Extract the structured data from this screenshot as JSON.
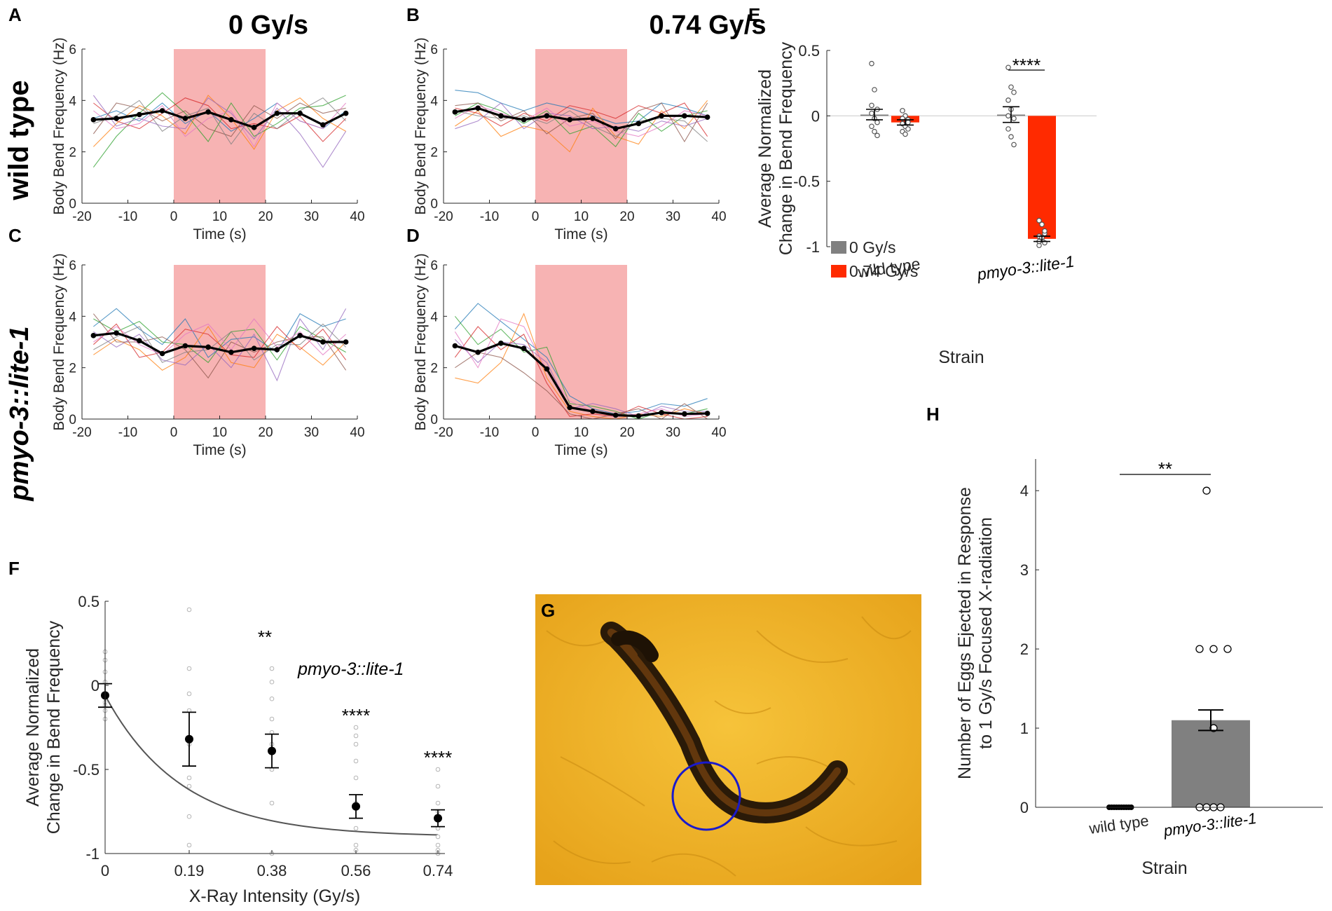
{
  "colors": {
    "shade": "#f7b3b3",
    "mean_line": "#000000",
    "bar_control": "#808080",
    "bar_treated": "#ff2a00",
    "axis": "#262626",
    "photo_bg": "#f0b52a",
    "circle": "#1a1acc",
    "trace_palette": [
      "#1f77b4",
      "#ff7f0e",
      "#2ca02c",
      "#d62728",
      "#9467bd",
      "#8c564b",
      "#e377c2",
      "#7f7f7f",
      "#bcbd22",
      "#17becf"
    ]
  },
  "columns": [
    "0 Gy/s",
    "0.74 Gy/s"
  ],
  "rows": [
    {
      "text": "wild type",
      "italic": false
    },
    {
      "text": "pmyo-3::lite-1",
      "italic": true
    }
  ],
  "chart_data": [
    {
      "id": "A",
      "label": "A",
      "type": "line",
      "title": "0 Gy/s",
      "row": "wild type",
      "xlabel": "Time (s)",
      "ylabel": "Body Bend Frequency (Hz)",
      "xlim": [
        -20,
        40
      ],
      "ylim": [
        0,
        6
      ],
      "xticks": [
        "-20",
        "-10",
        "0",
        "10",
        "20",
        "30",
        "40"
      ],
      "yticks": [
        "0",
        "2",
        "4",
        "6"
      ],
      "stimulus_window": [
        0,
        20
      ],
      "x": [
        -17.5,
        -12.5,
        -7.5,
        -2.5,
        2.5,
        7.5,
        12.5,
        17.5,
        22.5,
        27.5,
        32.5,
        37.5
      ],
      "mean": [
        3.25,
        3.3,
        3.45,
        3.6,
        3.3,
        3.55,
        3.25,
        2.95,
        3.5,
        3.5,
        3.05,
        3.5
      ],
      "traces": [
        [
          3.3,
          3.6,
          3.2,
          3.9,
          3.1,
          3.6,
          2.8,
          3.3,
          3.9,
          3.2,
          2.9,
          3.6
        ],
        [
          2.2,
          3.1,
          3.8,
          3.4,
          2.7,
          4.2,
          3.3,
          2.1,
          3.6,
          4.1,
          3.3,
          2.8
        ],
        [
          1.4,
          2.6,
          3.5,
          4.3,
          3.5,
          2.4,
          3.9,
          2.6,
          3.1,
          3.7,
          3.8,
          4.2
        ],
        [
          3.9,
          3.2,
          2.9,
          3.5,
          4.1,
          3.8,
          2.9,
          3.1,
          2.9,
          3.4,
          2.4,
          3.3
        ],
        [
          4.2,
          3.0,
          3.3,
          3.0,
          2.9,
          4.1,
          3.5,
          2.5,
          3.7,
          2.7,
          1.4,
          2.8
        ],
        [
          2.7,
          3.9,
          3.7,
          3.2,
          3.6,
          2.9,
          2.6,
          3.8,
          3.3,
          3.9,
          3.5,
          3.7
        ],
        [
          3.6,
          2.9,
          3.1,
          3.8,
          2.6,
          3.3,
          3.6,
          2.2,
          3.9,
          3.2,
          2.9,
          3.9
        ],
        [
          3.1,
          3.4,
          4.0,
          2.8,
          3.4,
          3.7,
          2.3,
          3.5,
          2.9,
          3.6,
          4.1,
          3.2
        ]
      ]
    },
    {
      "id": "B",
      "label": "B",
      "type": "line",
      "title": "0.74 Gy/s",
      "row": "wild type",
      "xlabel": "Time (s)",
      "ylabel": "Body Bend Frequency (Hz)",
      "xlim": [
        -20,
        40
      ],
      "ylim": [
        0,
        6
      ],
      "xticks": [
        "-20",
        "-10",
        "0",
        "10",
        "20",
        "30",
        "40"
      ],
      "yticks": [
        "0",
        "2",
        "4",
        "6"
      ],
      "stimulus_window": [
        0,
        20
      ],
      "x": [
        -17.5,
        -12.5,
        -7.5,
        -2.5,
        2.5,
        7.5,
        12.5,
        17.5,
        22.5,
        27.5,
        32.5,
        37.5
      ],
      "mean": [
        3.55,
        3.7,
        3.4,
        3.25,
        3.4,
        3.25,
        3.3,
        2.9,
        3.1,
        3.4,
        3.4,
        3.35
      ],
      "traces": [
        [
          4.4,
          4.3,
          3.9,
          3.6,
          3.9,
          3.7,
          3.4,
          3.1,
          3.2,
          3.9,
          3.7,
          3.4
        ],
        [
          3.0,
          3.6,
          2.6,
          3.0,
          2.8,
          2.0,
          3.7,
          2.6,
          2.3,
          3.6,
          2.9,
          4.0
        ],
        [
          3.4,
          3.9,
          3.6,
          3.1,
          3.6,
          2.7,
          3.0,
          2.2,
          3.5,
          2.8,
          3.4,
          3.6
        ],
        [
          3.7,
          3.5,
          3.0,
          3.5,
          3.2,
          3.8,
          3.6,
          3.3,
          3.8,
          3.5,
          3.9,
          2.6
        ],
        [
          2.9,
          3.2,
          3.9,
          2.9,
          3.5,
          3.4,
          2.9,
          3.0,
          2.8,
          3.2,
          3.0,
          3.3
        ],
        [
          3.8,
          3.9,
          3.2,
          3.6,
          2.7,
          3.3,
          3.5,
          2.5,
          3.6,
          3.9,
          2.4,
          3.9
        ],
        [
          3.3,
          3.8,
          3.5,
          3.2,
          3.7,
          3.0,
          3.2,
          2.8,
          2.6,
          3.0,
          3.6,
          3.4
        ],
        [
          3.6,
          3.4,
          3.3,
          3.4,
          3.1,
          3.6,
          3.0,
          2.6,
          3.2,
          3.3,
          3.2,
          2.4
        ]
      ]
    },
    {
      "id": "C",
      "label": "C",
      "type": "line",
      "title": "0 Gy/s",
      "row": "pmyo-3::lite-1",
      "xlabel": "Time (s)",
      "ylabel": "Body Bend Frequency (Hz)",
      "xlim": [
        -20,
        40
      ],
      "ylim": [
        0,
        6
      ],
      "xticks": [
        "-20",
        "-10",
        "0",
        "10",
        "20",
        "30",
        "40"
      ],
      "yticks": [
        "0",
        "2",
        "4",
        "6"
      ],
      "stimulus_window": [
        0,
        20
      ],
      "x": [
        -17.5,
        -12.5,
        -7.5,
        -2.5,
        2.5,
        7.5,
        12.5,
        17.5,
        22.5,
        27.5,
        32.5,
        37.5
      ],
      "mean": [
        3.25,
        3.35,
        3.05,
        2.55,
        2.85,
        2.8,
        2.6,
        2.75,
        2.7,
        3.25,
        3.0,
        3.0
      ],
      "traces": [
        [
          3.6,
          4.3,
          3.5,
          2.9,
          3.9,
          2.4,
          3.1,
          3.2,
          2.6,
          4.1,
          3.6,
          3.9
        ],
        [
          2.5,
          3.1,
          2.7,
          1.9,
          2.4,
          3.6,
          2.2,
          2.0,
          3.3,
          2.8,
          2.1,
          3.0
        ],
        [
          3.9,
          3.4,
          3.8,
          3.0,
          2.9,
          2.2,
          3.4,
          3.5,
          2.3,
          3.6,
          3.1,
          2.6
        ],
        [
          2.9,
          3.7,
          2.4,
          2.6,
          3.5,
          3.3,
          2.5,
          2.4,
          3.6,
          2.7,
          3.5,
          2.3
        ],
        [
          3.4,
          2.8,
          3.3,
          2.3,
          2.1,
          2.9,
          2.0,
          3.3,
          1.5,
          3.9,
          2.7,
          4.3
        ],
        [
          4.1,
          3.0,
          3.0,
          3.2,
          2.7,
          1.6,
          3.0,
          2.6,
          3.0,
          3.2,
          3.2,
          1.9
        ],
        [
          3.0,
          3.6,
          2.9,
          2.5,
          3.3,
          3.7,
          2.7,
          3.9,
          2.8,
          3.4,
          2.5,
          3.3
        ],
        [
          2.7,
          3.2,
          3.6,
          2.2,
          2.6,
          2.7,
          3.4,
          2.3,
          2.9,
          2.9,
          3.7,
          2.8
        ]
      ]
    },
    {
      "id": "D",
      "label": "D",
      "type": "line",
      "title": "0.74 Gy/s",
      "row": "pmyo-3::lite-1",
      "xlabel": "Time (s)",
      "ylabel": "Body Bend Frequency (Hz)",
      "xlim": [
        -20,
        40
      ],
      "ylim": [
        0,
        6
      ],
      "xticks": [
        "-20",
        "-10",
        "0",
        "10",
        "20",
        "30",
        "40"
      ],
      "yticks": [
        "0",
        "2",
        "4",
        "6"
      ],
      "stimulus_window": [
        0,
        20
      ],
      "x": [
        -17.5,
        -12.5,
        -7.5,
        -2.5,
        2.5,
        7.5,
        12.5,
        17.5,
        22.5,
        27.5,
        32.5,
        37.5
      ],
      "mean": [
        2.85,
        2.6,
        2.95,
        2.75,
        1.95,
        0.45,
        0.3,
        0.15,
        0.12,
        0.25,
        0.2,
        0.22
      ],
      "traces": [
        [
          3.5,
          4.5,
          3.8,
          3.1,
          2.4,
          0.9,
          0.4,
          0.2,
          0.3,
          0.6,
          0.5,
          0.8
        ],
        [
          1.6,
          1.4,
          2.2,
          4.1,
          1.6,
          0.3,
          0.1,
          0.0,
          0.2,
          0.1,
          0.4,
          0.2
        ],
        [
          4.0,
          2.9,
          3.5,
          2.6,
          2.8,
          0.6,
          0.5,
          0.3,
          0.0,
          0.3,
          0.2,
          0.4
        ],
        [
          2.4,
          3.6,
          2.7,
          3.3,
          1.4,
          0.1,
          0.2,
          0.1,
          0.5,
          0.2,
          0.0,
          0.1
        ],
        [
          3.1,
          2.2,
          3.0,
          2.9,
          2.2,
          0.4,
          0.6,
          0.4,
          0.1,
          0.5,
          0.3,
          0.3
        ],
        [
          2.0,
          2.6,
          2.4,
          1.8,
          1.1,
          0.2,
          0.0,
          0.2,
          0.4,
          0.0,
          0.6,
          0.0
        ],
        [
          3.4,
          2.0,
          3.9,
          3.6,
          1.9,
          0.7,
          0.3,
          0.1,
          0.2,
          0.4,
          0.1,
          0.2
        ]
      ]
    },
    {
      "id": "E",
      "label": "E",
      "type": "bar",
      "xlabel": "Strain",
      "ylabel": [
        "Average Normalized",
        "Change in Bend Frequency"
      ],
      "categories": [
        "wild type",
        "pmyo-3::lite-1"
      ],
      "category_italic": [
        false,
        true
      ],
      "ylim": [
        -1,
        0.5
      ],
      "yticks": [
        "-1",
        "-0.5",
        "0",
        "0.5"
      ],
      "series": [
        {
          "name": "0 Gy/s",
          "values": [
            0.01,
            0.01
          ],
          "sem": [
            0.04,
            0.06
          ],
          "points": [
            [
              0.4,
              0.2,
              0.05,
              0.02,
              -0.02,
              -0.05,
              -0.08,
              -0.12,
              -0.15,
              0.08
            ],
            [
              0.37,
              0.22,
              0.18,
              0.12,
              0.05,
              -0.02,
              -0.1,
              -0.16,
              -0.22,
              0.0
            ]
          ]
        },
        {
          "name": "0.74 Gy/s",
          "values": [
            -0.05,
            -0.94
          ],
          "sem": [
            0.02,
            0.02
          ],
          "points": [
            [
              0.04,
              0.0,
              -0.03,
              -0.06,
              -0.08,
              -0.1,
              -0.12,
              -0.14,
              -0.05,
              -0.02
            ],
            [
              -0.8,
              -0.83,
              -0.9,
              -0.92,
              -0.95,
              -0.97,
              -0.99,
              -0.93,
              -0.88,
              -0.96
            ]
          ]
        }
      ],
      "significance": [
        {
          "category": "pmyo-3::lite-1",
          "text": "****"
        }
      ],
      "legend": "bottom-left"
    },
    {
      "id": "F",
      "label": "F",
      "type": "scatter",
      "xlabel": "X-Ray Intensity (Gy/s)",
      "ylabel": [
        "Average Normalized",
        "Change in Bend Frequency"
      ],
      "x": [
        0,
        0.19,
        0.38,
        0.56,
        0.74
      ],
      "xticks": [
        "0",
        "0.19",
        "0.38",
        "0.56",
        "0.74"
      ],
      "ylim": [
        -1,
        0.5
      ],
      "yticks": [
        "-1",
        "-0.5",
        "0",
        "0.5"
      ],
      "mean": [
        -0.06,
        -0.32,
        -0.39,
        -0.72,
        -0.79
      ],
      "sem": [
        0.07,
        0.16,
        0.1,
        0.07,
        0.05
      ],
      "points": [
        [
          0.2,
          0.15,
          0.08,
          0.02,
          -0.05,
          -0.1,
          -0.15,
          -0.2,
          -0.12
        ],
        [
          0.45,
          0.1,
          -0.05,
          -0.15,
          -0.35,
          -0.55,
          -0.78,
          -0.95,
          -0.6
        ],
        [
          0.1,
          0.02,
          -0.08,
          -0.2,
          -0.35,
          -0.5,
          -0.7,
          -1.0,
          -0.28
        ],
        [
          -0.25,
          -0.35,
          -0.45,
          -0.55,
          -0.7,
          -0.85,
          -0.95,
          -0.98,
          -0.3
        ],
        [
          -0.6,
          -0.7,
          -0.75,
          -0.85,
          -0.9,
          -0.95,
          -0.98,
          -1.0,
          -0.5
        ]
      ],
      "fit": "exponential decay",
      "significance": [
        "",
        "",
        "**",
        "****",
        "****"
      ],
      "annotation": "pmyo-3::lite-1"
    },
    {
      "id": "H",
      "label": "H",
      "type": "bar",
      "xlabel": "Strain",
      "ylabel": [
        "Number of Eggs Ejected in Response",
        "to 1 Gy/s Focused X-radiation"
      ],
      "categories": [
        "wild type",
        "pmyo-3::lite-1"
      ],
      "category_italic": [
        false,
        true
      ],
      "ylim": [
        0,
        4.4
      ],
      "yticks": [
        "0",
        "1",
        "2",
        "3",
        "4"
      ],
      "values": [
        0,
        1.1
      ],
      "sem": [
        0,
        0.13
      ],
      "points": [
        [
          0,
          0,
          0,
          0,
          0,
          0,
          0,
          0,
          0,
          0
        ],
        [
          4,
          2,
          2,
          2,
          1,
          0,
          0,
          0,
          0
        ]
      ],
      "significance": [
        {
          "between": [
            "wild type",
            "pmyo-3::lite-1"
          ],
          "text": "**"
        }
      ]
    }
  ],
  "photo": {
    "label": "G"
  }
}
